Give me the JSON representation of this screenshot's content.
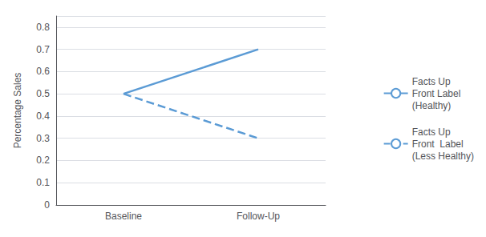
{
  "chart_data": {
    "type": "line",
    "categories": [
      "Baseline",
      "Follow-Up"
    ],
    "series": [
      {
        "name": "Facts Up\nFront Label\n(Healthy)",
        "color": "#5B9BD5",
        "line_style": "solid",
        "values": [
          0.5,
          0.7
        ]
      },
      {
        "name": "Facts Up\nFront  Label\n(Less Healthy)",
        "color": "#5B9BD5",
        "line_style": "dashed",
        "values": [
          0.5,
          0.3
        ]
      }
    ],
    "ylabel": "Percentage Sales",
    "ylim": [
      0,
      0.85
    ],
    "yticks": [
      0,
      0.1,
      0.2,
      0.3,
      0.4,
      0.5,
      0.6,
      0.7,
      0.8
    ],
    "grid": true,
    "legend": "right"
  }
}
